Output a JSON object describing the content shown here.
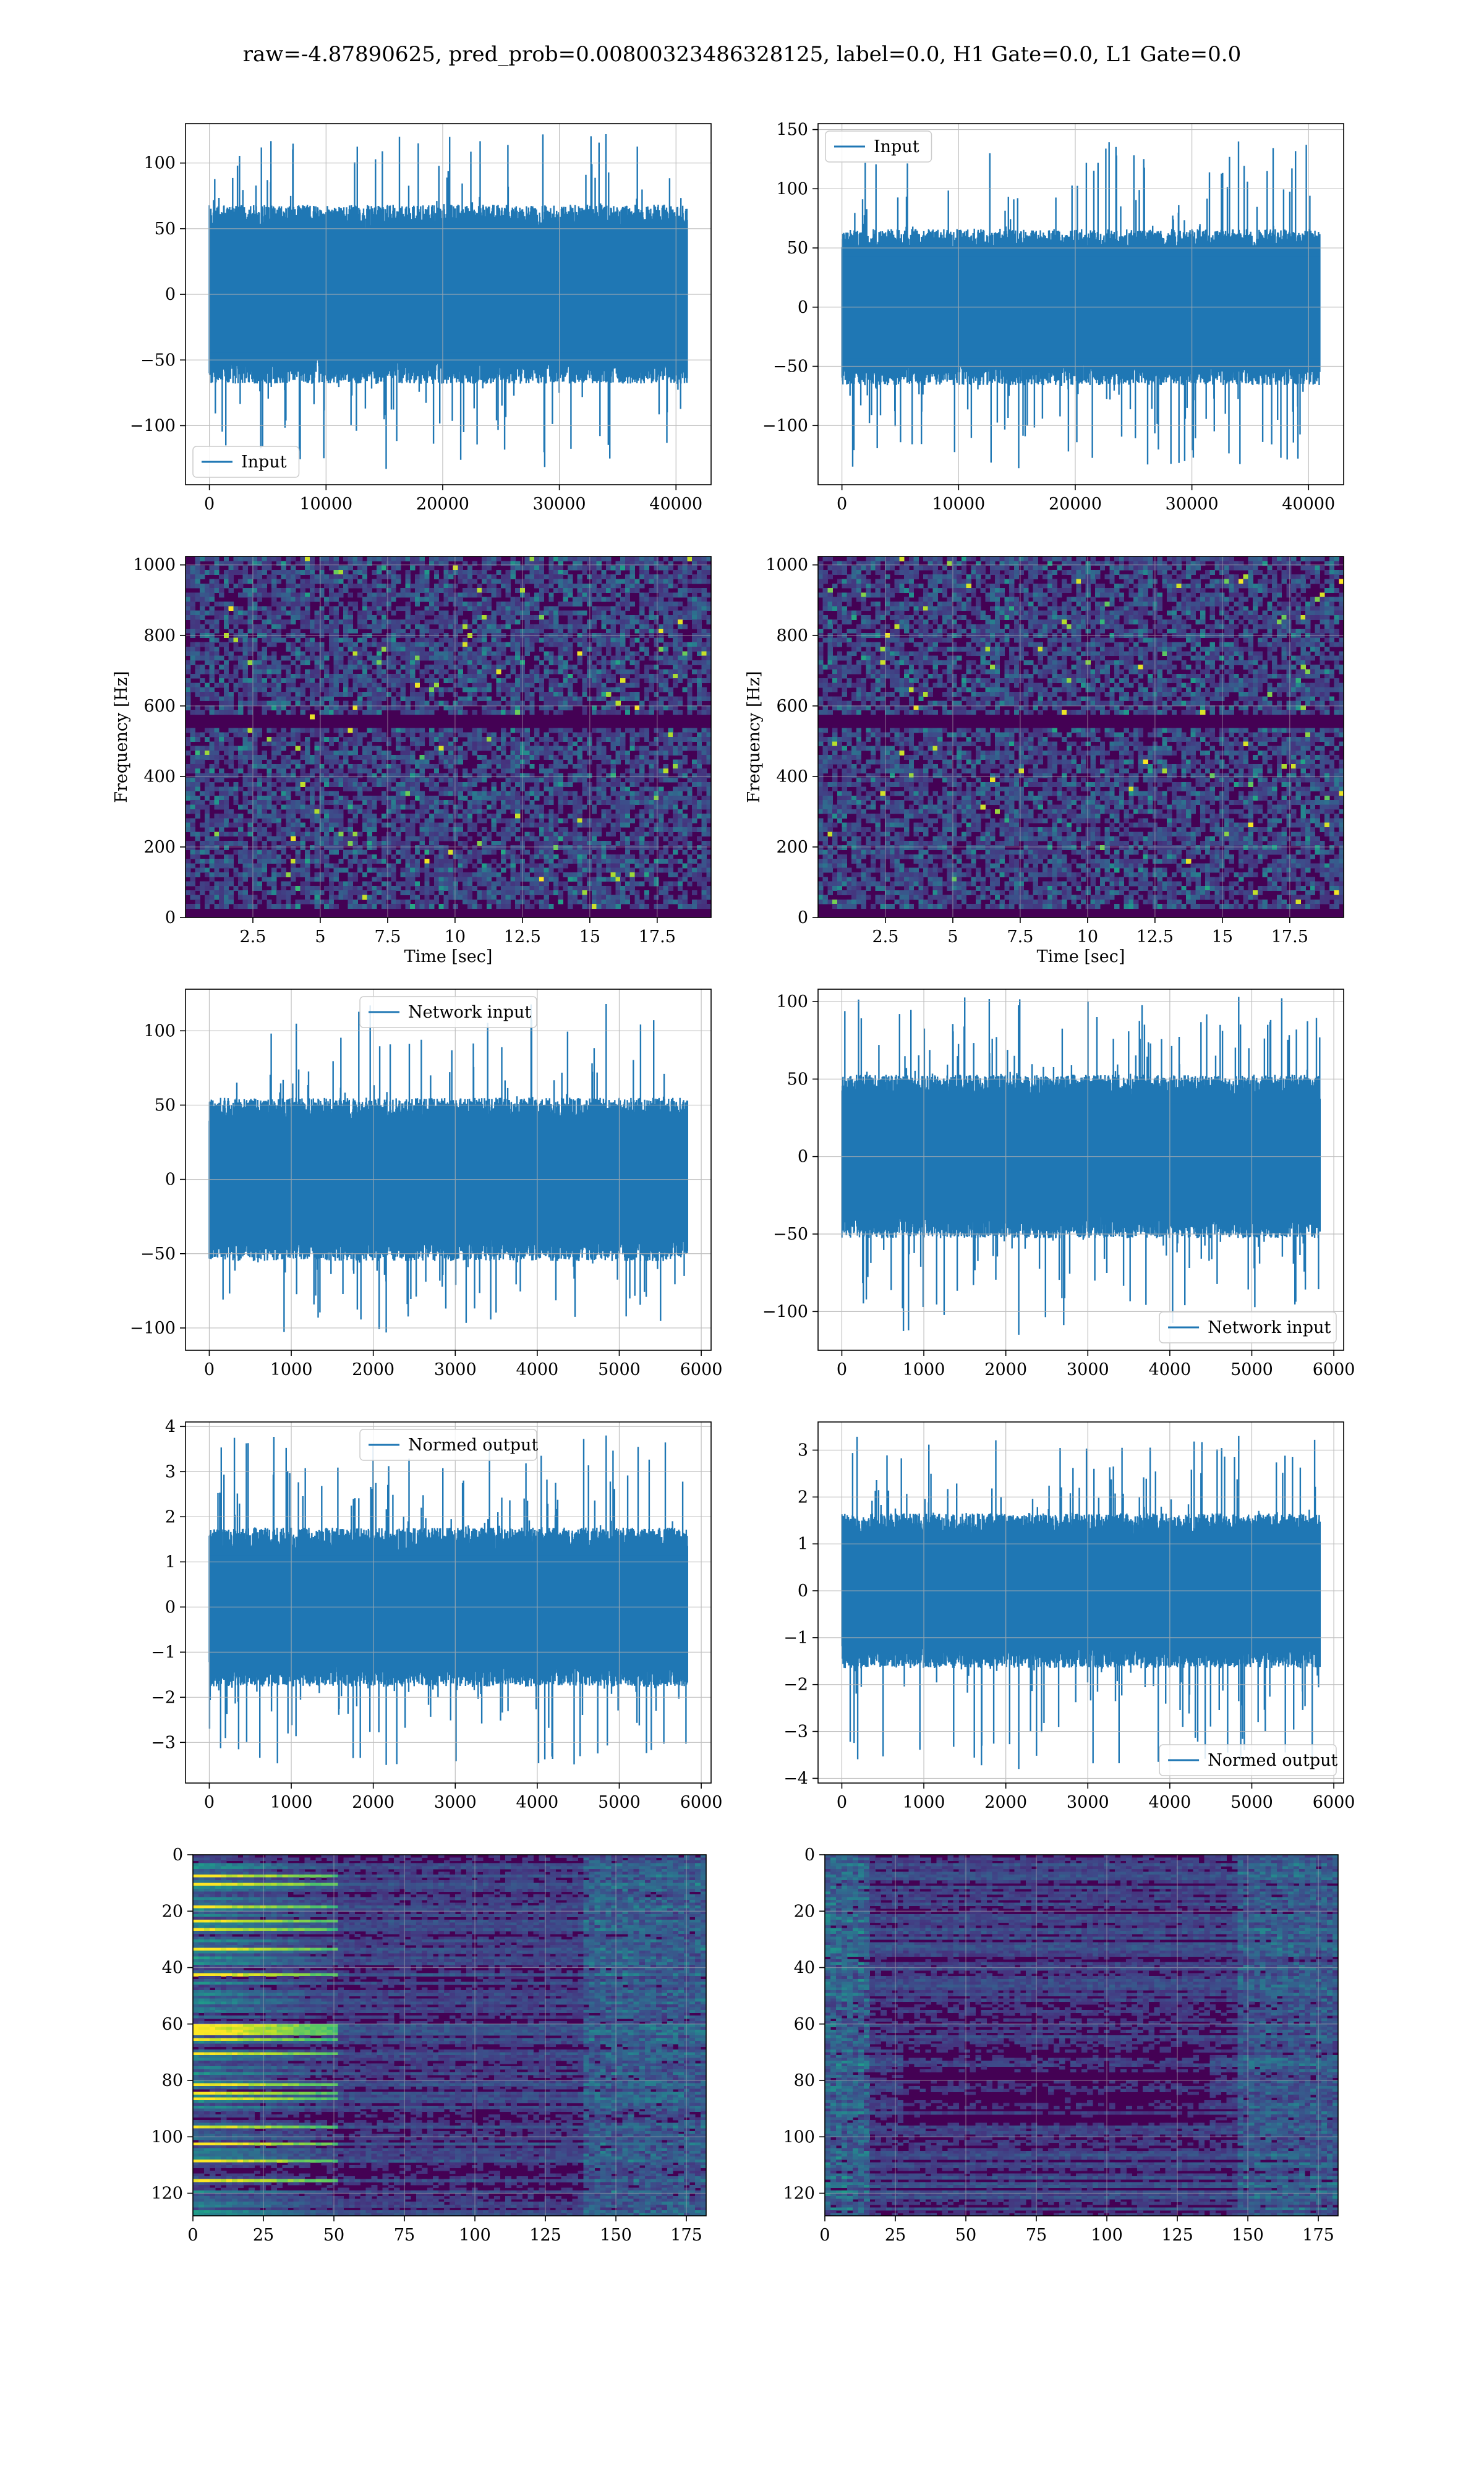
{
  "figure": {
    "suptitle": "raw=-4.87890625, pred_prob=0.00800323486328125, label=0.0, H1 Gate=0.0, L1 Gate=0.0"
  },
  "colors": {
    "line": "#1f77b4",
    "grid": "#b0b0b0",
    "viridis_dark": "#440154",
    "viridis_teal": "#21918c",
    "viridis_green": "#5ec962",
    "viridis_yellow": "#fde725"
  },
  "chart_data": [
    {
      "id": "h1-input",
      "type": "line",
      "legend": "Input",
      "legend_loc": "lower-left",
      "xlim": [
        -2048,
        43008
      ],
      "ylim": [
        -145,
        130
      ],
      "xticks": [
        0,
        10000,
        20000,
        30000,
        40000
      ],
      "yticks": [
        -100,
        -50,
        0,
        50,
        100
      ],
      "xlabel": "",
      "ylabel": "",
      "n": 40960,
      "band": [
        -62,
        62
      ],
      "spike_min": -133,
      "spike_max": 122
    },
    {
      "id": "l1-input",
      "type": "line",
      "legend": "Input",
      "legend_loc": "upper-left",
      "xlim": [
        -2048,
        43008
      ],
      "ylim": [
        -150,
        155
      ],
      "xticks": [
        0,
        10000,
        20000,
        30000,
        40000
      ],
      "yticks": [
        -100,
        -50,
        0,
        50,
        100,
        150
      ],
      "xlabel": "",
      "ylabel": "",
      "n": 40960,
      "band": [
        -60,
        60
      ],
      "spike_min": -136,
      "spike_max": 140
    },
    {
      "id": "h1-spectrogram",
      "type": "heatmap",
      "xlim": [
        0,
        19.5
      ],
      "ylim": [
        0,
        1024
      ],
      "xticks": [
        2.5,
        5.0,
        7.5,
        10.0,
        12.5,
        15.0,
        17.5
      ],
      "yticks": [
        0,
        200,
        400,
        600,
        800,
        1000
      ],
      "xlabel": "Time [sec]",
      "ylabel": "Frequency [Hz]"
    },
    {
      "id": "l1-spectrogram",
      "type": "heatmap",
      "xlim": [
        0,
        19.5
      ],
      "ylim": [
        0,
        1024
      ],
      "xticks": [
        2.5,
        5.0,
        7.5,
        10.0,
        12.5,
        15.0,
        17.5
      ],
      "yticks": [
        0,
        200,
        400,
        600,
        800,
        1000
      ],
      "xlabel": "Time [sec]",
      "ylabel": "Frequency [Hz]"
    },
    {
      "id": "h1-network-input",
      "type": "line",
      "legend": "Network input",
      "legend_loc": "upper-center",
      "xlim": [
        -290,
        6120
      ],
      "ylim": [
        -115,
        128
      ],
      "xticks": [
        0,
        1000,
        2000,
        3000,
        4000,
        5000,
        6000
      ],
      "yticks": [
        -100,
        -50,
        0,
        50,
        100
      ],
      "xlabel": "",
      "ylabel": "",
      "n": 5832,
      "band": [
        -50,
        50
      ],
      "spike_min": -103,
      "spike_max": 118
    },
    {
      "id": "l1-network-input",
      "type": "line",
      "legend": "Network input",
      "legend_loc": "lower-right",
      "xlim": [
        -290,
        6120
      ],
      "ylim": [
        -125,
        108
      ],
      "xticks": [
        0,
        1000,
        2000,
        3000,
        4000,
        5000,
        6000
      ],
      "yticks": [
        -100,
        -50,
        0,
        50,
        100
      ],
      "xlabel": "",
      "ylabel": "",
      "n": 5832,
      "band": [
        -48,
        48
      ],
      "spike_min": -115,
      "spike_max": 103
    },
    {
      "id": "h1-normed-output",
      "type": "line",
      "legend": "Normed output",
      "legend_loc": "upper-center",
      "xlim": [
        -290,
        6120
      ],
      "ylim": [
        -3.9,
        4.1
      ],
      "xticks": [
        0,
        1000,
        2000,
        3000,
        4000,
        5000,
        6000
      ],
      "yticks": [
        -3,
        -2,
        -1,
        0,
        1,
        2,
        3,
        4
      ],
      "xlabel": "",
      "ylabel": "",
      "n": 5832,
      "band": [
        -1.6,
        1.6
      ],
      "spike_min": -3.5,
      "spike_max": 3.8
    },
    {
      "id": "l1-normed-output",
      "type": "line",
      "legend": "Normed output",
      "legend_loc": "lower-right",
      "xlim": [
        -290,
        6120
      ],
      "ylim": [
        -4.1,
        3.6
      ],
      "xticks": [
        0,
        1000,
        2000,
        3000,
        4000,
        5000,
        6000
      ],
      "yticks": [
        -4,
        -3,
        -2,
        -1,
        0,
        1,
        2,
        3
      ],
      "xlabel": "",
      "ylabel": "",
      "n": 5832,
      "band": [
        -1.5,
        1.5
      ],
      "spike_min": -3.8,
      "spike_max": 3.3
    },
    {
      "id": "h1-feature-map",
      "type": "heatmap",
      "yinverted": true,
      "xlim": [
        0,
        182
      ],
      "ylim": [
        128,
        0
      ],
      "xticks": [
        0,
        25,
        50,
        75,
        100,
        125,
        150,
        175
      ],
      "yticks": [
        0,
        20,
        40,
        60,
        80,
        100,
        120
      ],
      "xlabel": "",
      "ylabel": ""
    },
    {
      "id": "l1-feature-map",
      "type": "heatmap",
      "yinverted": true,
      "xlim": [
        0,
        182
      ],
      "ylim": [
        128,
        0
      ],
      "xticks": [
        0,
        25,
        50,
        75,
        100,
        125,
        150,
        175
      ],
      "yticks": [
        0,
        20,
        40,
        60,
        80,
        100,
        120
      ],
      "xlabel": "",
      "ylabel": ""
    }
  ]
}
